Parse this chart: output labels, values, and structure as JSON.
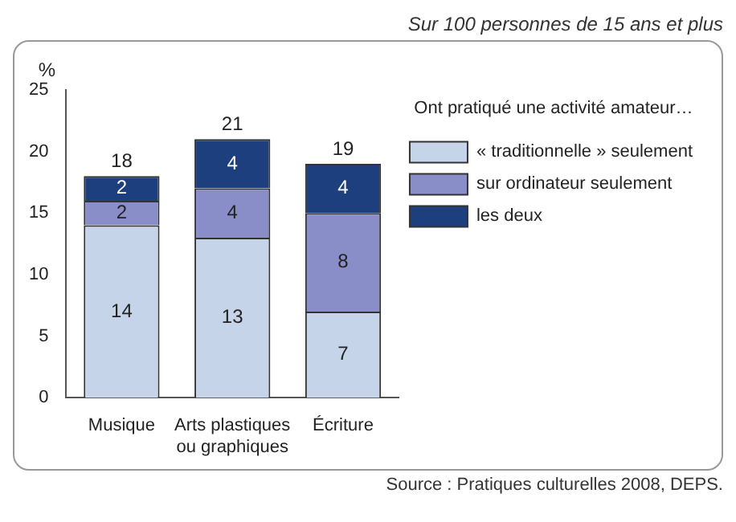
{
  "chart_data": {
    "type": "bar",
    "stacked": true,
    "subtitle": "Sur 100 personnes de 15 ans et plus",
    "ylabel": "%",
    "legend_title": "Ont pratiqué une activité amateur…",
    "annotations": [
      "Source : Pratiques culturelles 2008, DEPS."
    ],
    "categories": [
      "Musique",
      "Arts plastiques ou graphiques",
      "Écriture"
    ],
    "series": [
      {
        "name": "« traditionnelle » seulement",
        "color": "#c6d4ea",
        "values": [
          14,
          13,
          7
        ]
      },
      {
        "name": "sur ordinateur seulement",
        "color": "#8a8ec8",
        "values": [
          2,
          4,
          8
        ]
      },
      {
        "name": "les deux",
        "color": "#1d3f7e",
        "values": [
          2,
          4,
          4
        ]
      }
    ],
    "totals": [
      "18",
      "21",
      "19"
    ],
    "data_labels": true,
    "ylim": [
      0,
      25
    ],
    "yticks": [
      0,
      5,
      10,
      15,
      20,
      25
    ],
    "grid": false,
    "legend": "top right"
  }
}
